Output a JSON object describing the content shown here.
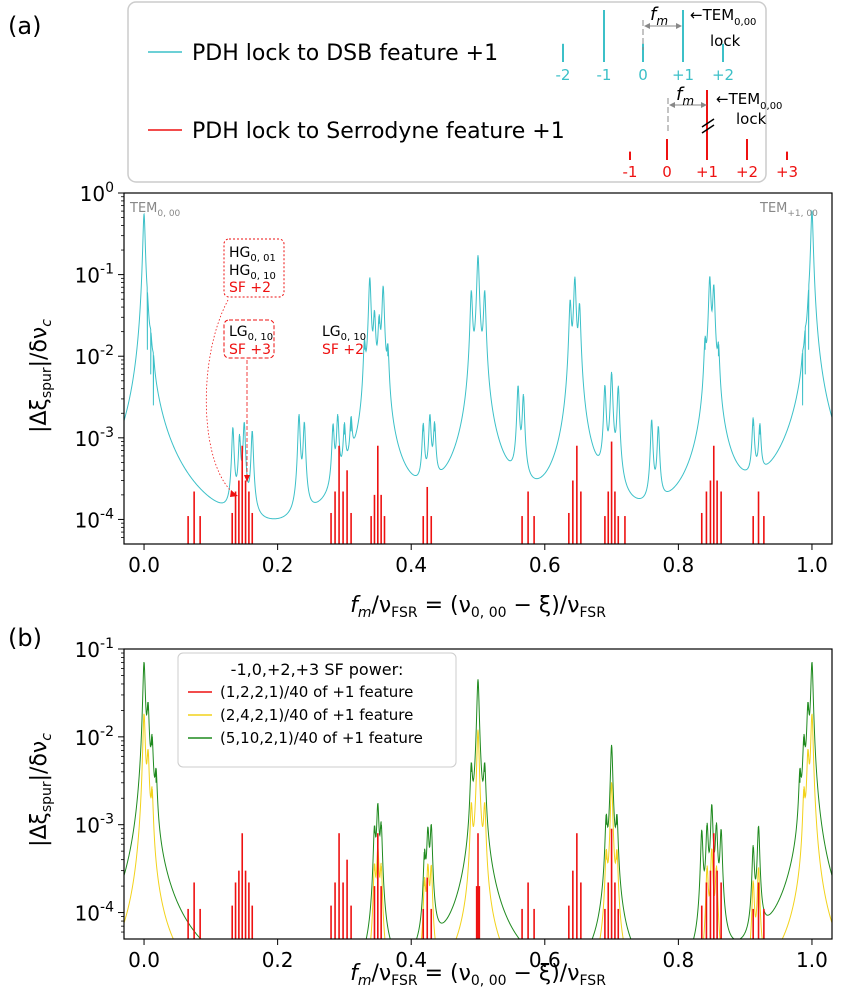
{
  "panel_labels": {
    "a": "(a)",
    "b": "(b)"
  },
  "colors": {
    "dsb": "#3cc0c8",
    "serrodyne": "#ee1111",
    "yellow": "#f2d21b",
    "green": "#1f8a1f",
    "gray": "#888888",
    "black": "#000000"
  },
  "legend_a": {
    "dsb_label": "PDH lock to DSB feature +1",
    "serrodyne_label": "PDH lock to Serrodyne feature +1"
  },
  "inset": {
    "fm_label": "f",
    "fm_sub": "m",
    "tem_arrow": "←TEM",
    "tem_sub": "0,00",
    "lock_label": "lock",
    "dsb_orders": [
      {
        "label": "-2",
        "height": 0.35
      },
      {
        "label": "-1",
        "height": 1.0
      },
      {
        "label": "0",
        "height": 0.35
      },
      {
        "label": "+1",
        "height": 1.0
      },
      {
        "label": "+2",
        "height": 0.35
      }
    ],
    "serro_orders": [
      {
        "label": "-1",
        "height": 0.12
      },
      {
        "label": "0",
        "height": 0.3
      },
      {
        "label": "+1",
        "height": 1.0
      },
      {
        "label": "+2",
        "height": 0.3
      },
      {
        "label": "+3",
        "height": 0.12
      }
    ]
  },
  "annotations_a": {
    "tem0_main": "TEM",
    "tem0_sub": "0, 00",
    "tem1_main": "TEM",
    "tem1_sub": "+1, 00",
    "hg01_main": "HG",
    "hg01_sub": "0, 01",
    "hg10_main": "HG",
    "hg10_sub": "0, 10",
    "sf2_a": "SF +2",
    "lg10a_main": "LG",
    "lg10a_sub": "0, 10",
    "sf3": "SF +3",
    "lg10b_main": "LG",
    "lg10b_sub": "0, 10",
    "sf2_b": "SF +2"
  },
  "legend_b": {
    "title": "-1,0,+2,+3 SF power:",
    "items": [
      {
        "label": "(1,2,2,1)/40 of +1 feature",
        "color": "#ee1111"
      },
      {
        "label": "(2,4,2,1)/40 of +1 feature",
        "color": "#f2d21b"
      },
      {
        "label": "(5,10,2,1)/40 of +1 feature",
        "color": "#1f8a1f"
      }
    ]
  },
  "axis_labels": {
    "x_main": "f",
    "x_m": "m",
    "x_slash1": "/ν",
    "x_fsr1": "FSR",
    "x_eq": " = (ν",
    "x_sub000": "0, 00",
    "x_minus": " − ξ)/ν",
    "x_fsr2": "FSR",
    "y_open": "|Δξ",
    "y_spur": "spur",
    "y_mid": "|/δν",
    "y_c": "c"
  },
  "chart_data": [
    {
      "panel": "a",
      "type": "line",
      "xlim": [
        -0.03,
        1.03
      ],
      "ylim": [
        5e-05,
        1
      ],
      "yscale": "log",
      "x_ticks": [
        "0.0",
        "0.2",
        "0.4",
        "0.6",
        "0.8",
        "1.0"
      ],
      "y_ticks": [
        "10",
        "10",
        "10",
        "10",
        "10"
      ],
      "y_tick_exponents": [
        "0",
        "-1",
        "-2",
        "-3",
        "-4"
      ],
      "y_tick_values": [
        1,
        0.1,
        0.01,
        0.001,
        0.0001
      ],
      "series": [
        {
          "name": "PDH lock to DSB feature +1",
          "color": "#3cc0c8",
          "style": "lorentzian_peaks",
          "peaks": [
            {
              "x": 0.0,
              "y": 0.55
            },
            {
              "x": 0.005,
              "y": 0.012
            },
            {
              "x": 0.01,
              "y": 0.006
            },
            {
              "x": 0.014,
              "y": 0.0025
            },
            {
              "x": 0.133,
              "y": 0.0012
            },
            {
              "x": 0.143,
              "y": 0.0009
            },
            {
              "x": 0.15,
              "y": 0.0014
            },
            {
              "x": 0.162,
              "y": 0.0011
            },
            {
              "x": 0.232,
              "y": 0.0018
            },
            {
              "x": 0.24,
              "y": 0.0014
            },
            {
              "x": 0.283,
              "y": 0.0012
            },
            {
              "x": 0.29,
              "y": 0.0016
            },
            {
              "x": 0.3,
              "y": 0.0011
            },
            {
              "x": 0.31,
              "y": 0.0012
            },
            {
              "x": 0.33,
              "y": 0.012
            },
            {
              "x": 0.338,
              "y": 0.09
            },
            {
              "x": 0.345,
              "y": 0.03
            },
            {
              "x": 0.352,
              "y": 0.025
            },
            {
              "x": 0.358,
              "y": 0.07
            },
            {
              "x": 0.365,
              "y": 0.01
            },
            {
              "x": 0.418,
              "y": 0.0012
            },
            {
              "x": 0.428,
              "y": 0.0016
            },
            {
              "x": 0.435,
              "y": 0.0012
            },
            {
              "x": 0.49,
              "y": 0.06
            },
            {
              "x": 0.5,
              "y": 0.17
            },
            {
              "x": 0.51,
              "y": 0.06
            },
            {
              "x": 0.56,
              "y": 0.004
            },
            {
              "x": 0.568,
              "y": 0.003
            },
            {
              "x": 0.638,
              "y": 0.045
            },
            {
              "x": 0.645,
              "y": 0.09
            },
            {
              "x": 0.652,
              "y": 0.04
            },
            {
              "x": 0.69,
              "y": 0.004
            },
            {
              "x": 0.7,
              "y": 0.006
            },
            {
              "x": 0.71,
              "y": 0.004
            },
            {
              "x": 0.76,
              "y": 0.0015
            },
            {
              "x": 0.77,
              "y": 0.0012
            },
            {
              "x": 0.84,
              "y": 0.012
            },
            {
              "x": 0.847,
              "y": 0.09
            },
            {
              "x": 0.853,
              "y": 0.07
            },
            {
              "x": 0.86,
              "y": 0.01
            },
            {
              "x": 0.912,
              "y": 0.0014
            },
            {
              "x": 0.922,
              "y": 0.0011
            },
            {
              "x": 0.986,
              "y": 0.0025
            },
            {
              "x": 0.99,
              "y": 0.006
            },
            {
              "x": 0.995,
              "y": 0.012
            },
            {
              "x": 1.0,
              "y": 0.6
            }
          ]
        },
        {
          "name": "PDH lock to Serrodyne feature +1",
          "color": "#ee1111",
          "style": "sticks",
          "peaks": [
            {
              "x": 0.066,
              "y": 0.00011
            },
            {
              "x": 0.075,
              "y": 0.00022
            },
            {
              "x": 0.084,
              "y": 0.00011
            },
            {
              "x": 0.132,
              "y": 0.00012
            },
            {
              "x": 0.137,
              "y": 0.00022
            },
            {
              "x": 0.142,
              "y": 0.0003
            },
            {
              "x": 0.147,
              "y": 0.0008
            },
            {
              "x": 0.152,
              "y": 0.0003
            },
            {
              "x": 0.157,
              "y": 0.00022
            },
            {
              "x": 0.162,
              "y": 0.00012
            },
            {
              "x": 0.28,
              "y": 0.00012
            },
            {
              "x": 0.286,
              "y": 0.00022
            },
            {
              "x": 0.292,
              "y": 0.0008
            },
            {
              "x": 0.298,
              "y": 0.00022
            },
            {
              "x": 0.304,
              "y": 0.0004
            },
            {
              "x": 0.31,
              "y": 0.00012
            },
            {
              "x": 0.34,
              "y": 0.00011
            },
            {
              "x": 0.345,
              "y": 0.0002
            },
            {
              "x": 0.35,
              "y": 0.0008
            },
            {
              "x": 0.355,
              "y": 0.0002
            },
            {
              "x": 0.36,
              "y": 0.00011
            },
            {
              "x": 0.418,
              "y": 0.00011
            },
            {
              "x": 0.424,
              "y": 0.00025
            },
            {
              "x": 0.43,
              "y": 0.00011
            },
            {
              "x": 0.566,
              "y": 0.00011
            },
            {
              "x": 0.575,
              "y": 0.00022
            },
            {
              "x": 0.584,
              "y": 0.00011
            },
            {
              "x": 0.636,
              "y": 0.00012
            },
            {
              "x": 0.642,
              "y": 0.0003
            },
            {
              "x": 0.648,
              "y": 0.0008
            },
            {
              "x": 0.654,
              "y": 0.00022
            },
            {
              "x": 0.69,
              "y": 0.00011
            },
            {
              "x": 0.695,
              "y": 0.00022
            },
            {
              "x": 0.7,
              "y": 0.0009
            },
            {
              "x": 0.705,
              "y": 0.00022
            },
            {
              "x": 0.71,
              "y": 0.00011
            },
            {
              "x": 0.72,
              "y": 0.00011
            },
            {
              "x": 0.835,
              "y": 0.00012
            },
            {
              "x": 0.842,
              "y": 0.00022
            },
            {
              "x": 0.848,
              "y": 0.0003
            },
            {
              "x": 0.853,
              "y": 0.0008
            },
            {
              "x": 0.858,
              "y": 0.0003
            },
            {
              "x": 0.864,
              "y": 0.00022
            },
            {
              "x": 0.912,
              "y": 0.00011
            },
            {
              "x": 0.92,
              "y": 0.00022
            },
            {
              "x": 0.928,
              "y": 0.00011
            }
          ]
        }
      ]
    },
    {
      "panel": "b",
      "type": "line",
      "xlim": [
        -0.03,
        1.03
      ],
      "ylim": [
        5e-05,
        0.1
      ],
      "yscale": "log",
      "x_ticks": [
        "0.0",
        "0.2",
        "0.4",
        "0.6",
        "0.8",
        "1.0"
      ],
      "y_ticks": [
        "10",
        "10",
        "10",
        "10"
      ],
      "y_tick_exponents": [
        "-1",
        "-2",
        "-3",
        "-4"
      ],
      "y_tick_values": [
        0.1,
        0.01,
        0.001,
        0.0001
      ],
      "series": [
        {
          "name": "(5,10,2,1)/40 of +1 feature",
          "color": "#1f8a1f",
          "style": "lorentzian_peaks",
          "peaks": [
            {
              "x": 0.0,
              "y": 0.07
            },
            {
              "x": 0.006,
              "y": 0.02
            },
            {
              "x": 0.012,
              "y": 0.008
            },
            {
              "x": 0.018,
              "y": 0.003
            },
            {
              "x": 0.345,
              "y": 0.0008
            },
            {
              "x": 0.35,
              "y": 0.0016
            },
            {
              "x": 0.355,
              "y": 0.0009
            },
            {
              "x": 0.42,
              "y": 0.0004
            },
            {
              "x": 0.425,
              "y": 0.0008
            },
            {
              "x": 0.43,
              "y": 0.0009
            },
            {
              "x": 0.49,
              "y": 0.004
            },
            {
              "x": 0.5,
              "y": 0.045
            },
            {
              "x": 0.51,
              "y": 0.004
            },
            {
              "x": 0.692,
              "y": 0.001
            },
            {
              "x": 0.7,
              "y": 0.008
            },
            {
              "x": 0.708,
              "y": 0.001
            },
            {
              "x": 0.835,
              "y": 0.0008
            },
            {
              "x": 0.843,
              "y": 0.0009
            },
            {
              "x": 0.85,
              "y": 0.0016
            },
            {
              "x": 0.857,
              "y": 0.0009
            },
            {
              "x": 0.864,
              "y": 0.0008
            },
            {
              "x": 0.912,
              "y": 0.0005
            },
            {
              "x": 0.92,
              "y": 0.0009
            },
            {
              "x": 0.982,
              "y": 0.003
            },
            {
              "x": 0.988,
              "y": 0.008
            },
            {
              "x": 0.994,
              "y": 0.02
            },
            {
              "x": 1.0,
              "y": 0.07
            }
          ]
        },
        {
          "name": "(2,4,2,1)/40 of +1 feature",
          "color": "#f2d21b",
          "style": "lorentzian_peaks",
          "peaks": [
            {
              "x": 0.0,
              "y": 0.018
            },
            {
              "x": 0.006,
              "y": 0.006
            },
            {
              "x": 0.012,
              "y": 0.002
            },
            {
              "x": 0.345,
              "y": 0.0003
            },
            {
              "x": 0.35,
              "y": 0.0005
            },
            {
              "x": 0.355,
              "y": 0.0003
            },
            {
              "x": 0.42,
              "y": 0.0002
            },
            {
              "x": 0.425,
              "y": 0.0003
            },
            {
              "x": 0.43,
              "y": 0.0003
            },
            {
              "x": 0.49,
              "y": 0.0015
            },
            {
              "x": 0.5,
              "y": 0.012
            },
            {
              "x": 0.51,
              "y": 0.0015
            },
            {
              "x": 0.692,
              "y": 0.0004
            },
            {
              "x": 0.7,
              "y": 0.003
            },
            {
              "x": 0.708,
              "y": 0.0004
            },
            {
              "x": 0.843,
              "y": 0.0003
            },
            {
              "x": 0.85,
              "y": 0.0005
            },
            {
              "x": 0.857,
              "y": 0.0003
            },
            {
              "x": 0.912,
              "y": 0.0002
            },
            {
              "x": 0.92,
              "y": 0.0003
            },
            {
              "x": 0.988,
              "y": 0.002
            },
            {
              "x": 0.994,
              "y": 0.006
            },
            {
              "x": 1.0,
              "y": 0.018
            }
          ]
        },
        {
          "name": "(1,2,2,1)/40 of +1 feature",
          "color": "#ee1111",
          "style": "sticks",
          "peaks": [
            {
              "x": 0.066,
              "y": 0.00011
            },
            {
              "x": 0.075,
              "y": 0.00022
            },
            {
              "x": 0.084,
              "y": 0.00011
            },
            {
              "x": 0.132,
              "y": 0.00012
            },
            {
              "x": 0.137,
              "y": 0.00022
            },
            {
              "x": 0.142,
              "y": 0.0003
            },
            {
              "x": 0.147,
              "y": 0.0008
            },
            {
              "x": 0.152,
              "y": 0.0003
            },
            {
              "x": 0.157,
              "y": 0.00022
            },
            {
              "x": 0.162,
              "y": 0.00012
            },
            {
              "x": 0.28,
              "y": 0.00012
            },
            {
              "x": 0.286,
              "y": 0.00022
            },
            {
              "x": 0.292,
              "y": 0.0008
            },
            {
              "x": 0.298,
              "y": 0.00022
            },
            {
              "x": 0.304,
              "y": 0.0004
            },
            {
              "x": 0.31,
              "y": 0.00012
            },
            {
              "x": 0.345,
              "y": 0.0002
            },
            {
              "x": 0.35,
              "y": 0.0008
            },
            {
              "x": 0.355,
              "y": 0.0002
            },
            {
              "x": 0.418,
              "y": 0.00011
            },
            {
              "x": 0.424,
              "y": 0.00025
            },
            {
              "x": 0.43,
              "y": 0.00011
            },
            {
              "x": 0.498,
              "y": 0.0002
            },
            {
              "x": 0.5,
              "y": 0.0008
            },
            {
              "x": 0.502,
              "y": 0.0002
            },
            {
              "x": 0.566,
              "y": 0.00011
            },
            {
              "x": 0.575,
              "y": 0.00022
            },
            {
              "x": 0.584,
              "y": 0.00011
            },
            {
              "x": 0.636,
              "y": 0.00012
            },
            {
              "x": 0.642,
              "y": 0.0003
            },
            {
              "x": 0.648,
              "y": 0.0008
            },
            {
              "x": 0.654,
              "y": 0.00022
            },
            {
              "x": 0.69,
              "y": 0.00011
            },
            {
              "x": 0.695,
              "y": 0.00022
            },
            {
              "x": 0.7,
              "y": 0.0009
            },
            {
              "x": 0.705,
              "y": 0.00022
            },
            {
              "x": 0.71,
              "y": 0.00011
            },
            {
              "x": 0.835,
              "y": 0.00012
            },
            {
              "x": 0.842,
              "y": 0.00022
            },
            {
              "x": 0.848,
              "y": 0.0003
            },
            {
              "x": 0.853,
              "y": 0.0008
            },
            {
              "x": 0.858,
              "y": 0.0003
            },
            {
              "x": 0.864,
              "y": 0.00022
            },
            {
              "x": 0.912,
              "y": 0.00011
            },
            {
              "x": 0.92,
              "y": 0.00022
            },
            {
              "x": 0.928,
              "y": 0.00011
            }
          ]
        }
      ]
    }
  ]
}
